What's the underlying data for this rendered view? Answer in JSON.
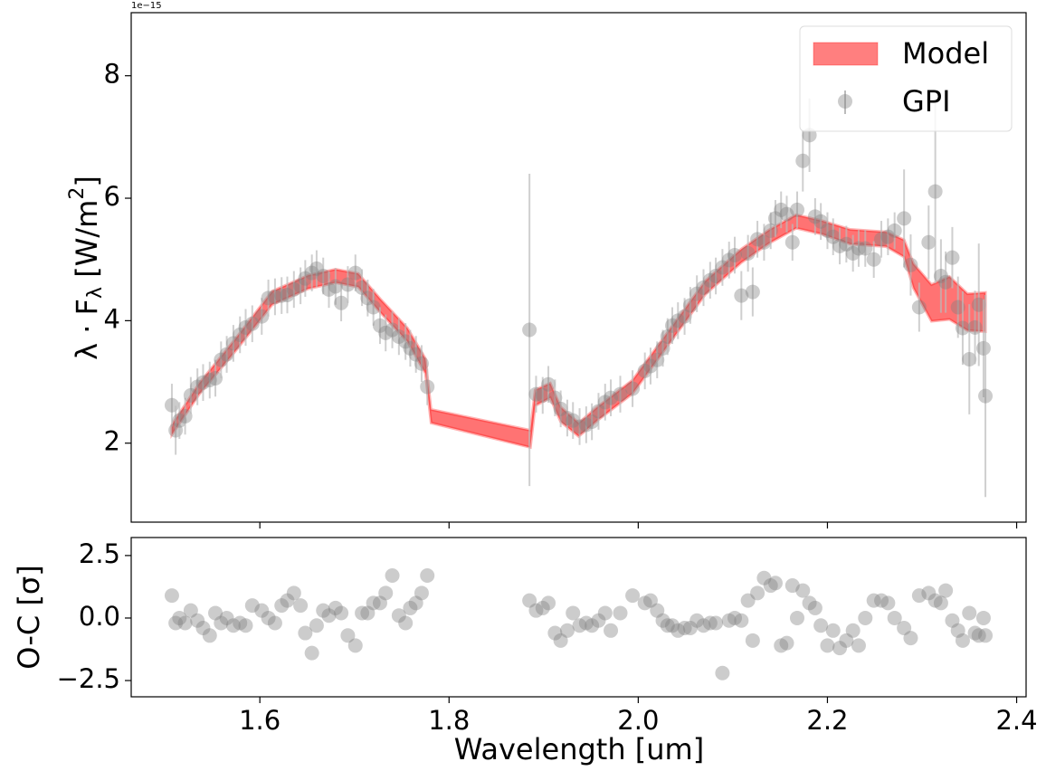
{
  "chart_data": [
    {
      "type": "scatter",
      "offset_text": "1e−15",
      "ylabel": {
        "main": "λ · F",
        "sub": "λ",
        "unit": " [W/m",
        "sup": "2",
        "close": "]"
      },
      "xlim": [
        1.464,
        2.41
      ],
      "ylim": [
        0.71,
        9.03
      ],
      "yticks": [
        2,
        4,
        6,
        8
      ],
      "legend": "upper right",
      "series": [
        {
          "name": "Model",
          "color": "#ff0000",
          "x": [
            1.507,
            1.536,
            1.574,
            1.613,
            1.651,
            1.68,
            1.704,
            1.727,
            1.756,
            1.775,
            1.781,
            1.886,
            1.891,
            1.907,
            1.918,
            1.937,
            1.956,
            1.994,
            2.033,
            2.071,
            2.109,
            2.138,
            2.167,
            2.195,
            2.224,
            2.262,
            2.281,
            2.291,
            2.31,
            2.329,
            2.348,
            2.367
          ],
          "lower": [
            2.14,
            2.8,
            3.5,
            4.26,
            4.52,
            4.62,
            4.55,
            4.14,
            3.66,
            3.14,
            2.33,
            1.93,
            2.61,
            2.74,
            2.35,
            2.11,
            2.36,
            2.81,
            3.63,
            4.43,
            4.95,
            5.26,
            5.51,
            5.41,
            5.25,
            5.21,
            5.04,
            4.53,
            3.99,
            4.02,
            3.84,
            3.82
          ],
          "upper": [
            2.3,
            2.98,
            3.7,
            4.48,
            4.74,
            4.84,
            4.77,
            4.36,
            3.88,
            3.38,
            2.55,
            2.21,
            2.87,
            2.98,
            2.59,
            2.33,
            2.58,
            3.03,
            3.85,
            4.65,
            5.17,
            5.48,
            5.73,
            5.63,
            5.49,
            5.45,
            5.32,
            4.93,
            4.59,
            4.72,
            4.44,
            4.46
          ]
        },
        {
          "name": "GPI",
          "color": "#808080",
          "x": [
            1.507,
            1.511,
            1.515,
            1.521,
            1.527,
            1.534,
            1.54,
            1.547,
            1.553,
            1.559,
            1.565,
            1.572,
            1.579,
            1.585,
            1.592,
            1.602,
            1.609,
            1.616,
            1.623,
            1.629,
            1.636,
            1.643,
            1.648,
            1.655,
            1.66,
            1.667,
            1.673,
            1.68,
            1.686,
            1.693,
            1.701,
            1.708,
            1.714,
            1.72,
            1.727,
            1.733,
            1.74,
            1.747,
            1.754,
            1.759,
            1.765,
            1.771,
            1.777,
            1.885,
            1.892,
            1.899,
            1.905,
            1.912,
            1.918,
            1.925,
            1.931,
            1.938,
            1.945,
            1.951,
            1.958,
            1.965,
            1.971,
            1.981,
            1.994,
            2.007,
            2.013,
            2.02,
            2.026,
            2.031,
            2.036,
            2.042,
            2.049,
            2.055,
            2.062,
            2.069,
            2.076,
            2.082,
            2.089,
            2.096,
            2.102,
            2.109,
            2.116,
            2.121,
            2.126,
            2.133,
            2.14,
            2.145,
            2.151,
            2.157,
            2.163,
            2.168,
            2.174,
            2.181,
            2.187,
            2.193,
            2.2,
            2.206,
            2.213,
            2.22,
            2.227,
            2.233,
            2.24,
            2.249,
            2.257,
            2.264,
            2.271,
            2.281,
            2.288,
            2.297,
            2.307,
            2.314,
            2.32,
            2.325,
            2.332,
            2.338,
            2.343,
            2.35,
            2.356,
            2.36,
            2.365,
            2.367
          ],
          "values": [
            2.62,
            2.21,
            2.37,
            2.44,
            2.78,
            2.92,
            2.99,
            3.03,
            3.06,
            3.36,
            3.45,
            3.63,
            3.77,
            3.89,
            3.95,
            4.07,
            4.37,
            4.39,
            4.41,
            4.42,
            4.51,
            4.57,
            4.69,
            4.78,
            4.85,
            4.73,
            4.51,
            4.56,
            4.29,
            4.59,
            4.78,
            4.54,
            4.37,
            4.22,
            3.92,
            3.8,
            3.85,
            3.74,
            3.66,
            3.55,
            3.45,
            3.3,
            2.92,
            3.85,
            2.8,
            2.78,
            2.96,
            2.74,
            2.56,
            2.41,
            2.37,
            2.27,
            2.3,
            2.35,
            2.52,
            2.67,
            2.74,
            2.8,
            2.89,
            3.18,
            3.26,
            3.36,
            3.55,
            3.74,
            3.92,
            4.0,
            4.07,
            4.25,
            4.44,
            4.54,
            4.66,
            4.73,
            4.87,
            4.99,
            5.07,
            4.41,
            5.1,
            4.47,
            5.33,
            5.28,
            5.47,
            5.67,
            5.81,
            5.74,
            5.28,
            5.81,
            6.61,
            7.03,
            5.7,
            5.62,
            5.47,
            5.37,
            5.22,
            5.25,
            5.1,
            5.18,
            5.18,
            5.0,
            5.33,
            5.37,
            5.47,
            5.67,
            4.91,
            4.22,
            5.28,
            6.11,
            4.73,
            4.63,
            5.03,
            4.22,
            3.88,
            3.37,
            3.89,
            4.26,
            3.55,
            2.77
          ],
          "errors": [
            0.35,
            0.4,
            0.3,
            0.3,
            0.3,
            0.3,
            0.3,
            0.3,
            0.3,
            0.3,
            0.3,
            0.3,
            0.3,
            0.3,
            0.3,
            0.3,
            0.3,
            0.3,
            0.3,
            0.3,
            0.3,
            0.3,
            0.3,
            0.3,
            0.3,
            0.3,
            0.3,
            0.3,
            0.3,
            0.3,
            0.3,
            0.3,
            0.3,
            0.3,
            0.3,
            0.3,
            0.3,
            0.3,
            0.3,
            0.3,
            0.3,
            0.3,
            0.3,
            2.55,
            0.3,
            0.3,
            0.3,
            0.3,
            0.3,
            0.3,
            0.3,
            0.3,
            0.3,
            0.3,
            0.3,
            0.3,
            0.3,
            0.3,
            0.3,
            0.3,
            0.3,
            0.3,
            0.3,
            0.3,
            0.3,
            0.3,
            0.3,
            0.3,
            0.3,
            0.3,
            0.3,
            0.3,
            0.3,
            0.3,
            0.3,
            0.4,
            0.3,
            0.4,
            0.3,
            0.3,
            0.3,
            0.3,
            0.3,
            0.3,
            0.3,
            0.3,
            0.5,
            0.6,
            0.3,
            0.3,
            0.3,
            0.3,
            0.3,
            0.3,
            0.3,
            0.3,
            0.3,
            0.3,
            0.3,
            0.3,
            0.3,
            0.8,
            0.5,
            0.4,
            0.6,
            1.5,
            0.6,
            0.5,
            0.5,
            0.5,
            0.6,
            0.9,
            0.6,
            1.0,
            0.8,
            1.65
          ]
        }
      ]
    },
    {
      "type": "scatter",
      "ylabel": "O-C [σ]",
      "xlabel": "Wavelength [um]",
      "color": "#808080",
      "xlim": [
        1.464,
        2.41
      ],
      "xticks": [
        1.6,
        1.8,
        {
          "value": 2,
          "label": "2.0"
        },
        2.2,
        2.4
      ],
      "ylim": [
        -3.15,
        3.22
      ],
      "yticks": [
        2.5,
        {
          "value": 0,
          "label": "0.0"
        },
        {
          "value": -2.5,
          "label": "−2.5"
        }
      ],
      "values": [
        0.9,
        -0.2,
        0.0,
        -0.2,
        0.3,
        -0.1,
        -0.4,
        -0.7,
        0.2,
        -0.2,
        0.0,
        -0.3,
        -0.2,
        -0.3,
        0.5,
        0.3,
        0.0,
        -0.2,
        0.5,
        0.7,
        1.0,
        0.5,
        -0.6,
        -1.4,
        -0.3,
        0.3,
        0.1,
        0.4,
        0.2,
        -0.7,
        -1.1,
        0.2,
        0.2,
        0.6,
        0.6,
        1.0,
        1.7,
        0.1,
        -0.2,
        0.4,
        0.6,
        1.0,
        1.7,
        0.7,
        0.3,
        0.4,
        0.6,
        -0.6,
        -0.9,
        -0.5,
        0.2,
        -0.3,
        -0.2,
        -0.3,
        -0.1,
        0.2,
        -0.5,
        0.2,
        0.9,
        0.6,
        0.7,
        0.3,
        -0.1,
        -0.3,
        -0.3,
        -0.5,
        -0.4,
        -0.4,
        -0.1,
        -0.3,
        -0.2,
        -0.2,
        -2.2,
        -0.1,
        0.0,
        -0.1,
        0.7,
        -0.9,
        1.0,
        1.6,
        1.3,
        1.4,
        -1.1,
        -1.0,
        1.3,
        0.0,
        1.1,
        0.6,
        0.4,
        -0.3,
        -1.1,
        -0.5,
        -1.2,
        -0.9,
        -0.5,
        -1.1,
        0.0,
        0.7,
        0.7,
        0.6,
        0.0,
        -0.4,
        -0.8,
        0.9,
        1.0,
        0.7,
        0.6,
        1.1,
        -0.1,
        -0.5,
        -0.9,
        0.2,
        -0.6,
        -0.7,
        0.0,
        -0.7
      ]
    }
  ]
}
